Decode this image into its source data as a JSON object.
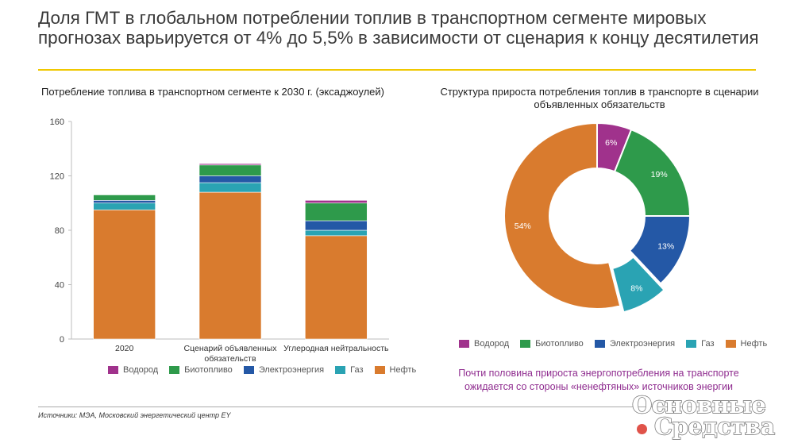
{
  "slide": {
    "title": "Доля ГМТ в глобальном потреблении топлив в транспортном сегменте мировых прогнозах варьируется от 4% до 5,5% в зависимости от сценария к концу десятилетия",
    "note": "Почти половина прироста энергопотребления на транспорте ожидается со стороны «ненефтяных» источников энергии",
    "source": "Источники: МЭА, Московский энергетический центр EY",
    "watermark": {
      "line1": "Основные",
      "line2": "Средства"
    },
    "accent_color": "#f0c800"
  },
  "chart_data": [
    {
      "type": "bar",
      "stacked": true,
      "title": "Потребление топлива в транспортном сегменте к 2030 г. (эксаджоулей)",
      "categories": [
        "2020",
        "Сценарий объявленных обязательств",
        "Углеродная нейтральность"
      ],
      "series": [
        {
          "name": "Нефть",
          "color": "#d97b2e",
          "values": [
            95,
            108,
            76
          ]
        },
        {
          "name": "Газ",
          "color": "#2aa3b3",
          "values": [
            5,
            7,
            4
          ]
        },
        {
          "name": "Электроэнергия",
          "color": "#2458a6",
          "values": [
            2,
            5,
            7
          ]
        },
        {
          "name": "Биотопливо",
          "color": "#2e9a4b",
          "values": [
            4,
            8,
            13
          ]
        },
        {
          "name": "Водород",
          "color": "#a0328c",
          "values": [
            0,
            1,
            2
          ]
        }
      ],
      "legend_order": [
        "Водород",
        "Биотопливо",
        "Электроэнергия",
        "Газ",
        "Нефть"
      ],
      "ylim": [
        0,
        160
      ],
      "yticks": [
        0,
        40,
        80,
        120,
        160
      ],
      "grid": false,
      "legend": "bottom"
    },
    {
      "type": "pie",
      "donut": true,
      "title": "Структура прироста потребления топлив в транспорте в сценарии объявленных обязательств",
      "slices": [
        {
          "name": "Водород",
          "value": 6,
          "label": "6%",
          "color": "#a0328c"
        },
        {
          "name": "Биотопливо",
          "value": 19,
          "label": "19%",
          "color": "#2e9a4b"
        },
        {
          "name": "Электроэнергия",
          "value": 13,
          "label": "13%",
          "color": "#2458a6"
        },
        {
          "name": "Газ",
          "value": 8,
          "label": "8%",
          "color": "#2aa3b3",
          "exploded": true
        },
        {
          "name": "Нефть",
          "value": 54,
          "label": "54%",
          "color": "#d97b2e"
        }
      ],
      "legend_order": [
        "Водород",
        "Биотопливо",
        "Электроэнергия",
        "Газ",
        "Нефть"
      ],
      "legend": "bottom"
    }
  ]
}
